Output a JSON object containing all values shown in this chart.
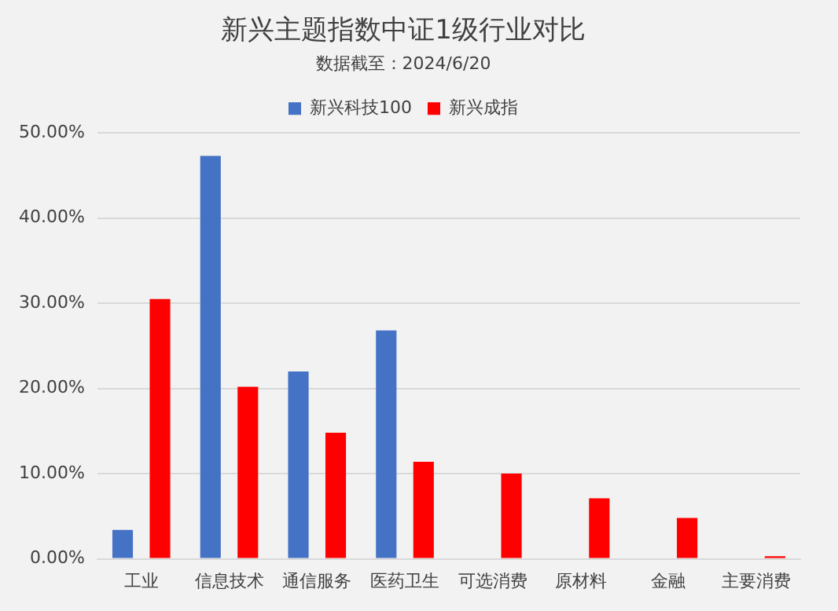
{
  "chart_data": {
    "type": "bar",
    "title": "新兴主题指数中证1级行业对比",
    "subtitle": "数据截至：2024/6/20",
    "categories": [
      "工业",
      "信息技术",
      "通信服务",
      "医药卫生",
      "可选消费",
      "原材料",
      "金融",
      "主要消费"
    ],
    "series": [
      {
        "name": "新兴科技100",
        "color": "#4472c4",
        "values": [
          3.4,
          47.3,
          22.0,
          26.8,
          null,
          null,
          null,
          null
        ]
      },
      {
        "name": "新兴成指",
        "color": "#ff0000",
        "values": [
          30.5,
          20.2,
          14.8,
          11.4,
          10.0,
          7.1,
          4.8,
          0.3
        ]
      }
    ],
    "ylim": [
      0,
      50
    ],
    "yticks": [
      {
        "value": 0,
        "label": "0.00%"
      },
      {
        "value": 10,
        "label": "10.00%"
      },
      {
        "value": 20,
        "label": "20.00%"
      },
      {
        "value": 30,
        "label": "30.00%"
      },
      {
        "value": 40,
        "label": "40.00%"
      },
      {
        "value": 50,
        "label": "50.00%"
      }
    ],
    "grid": "y",
    "legend": "top"
  }
}
